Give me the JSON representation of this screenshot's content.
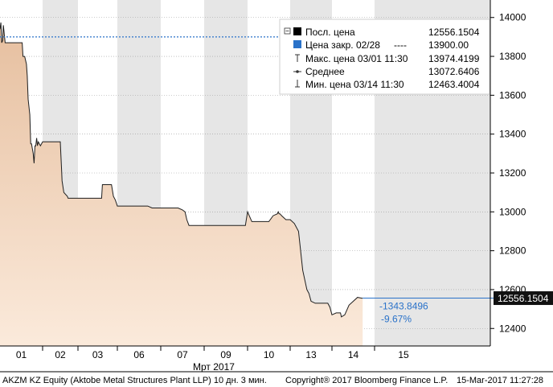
{
  "chart_data": {
    "type": "area",
    "ticker": "AKZM KZ Equity (Aktobe Metal Structures Plant LLP) 10 дн. 3 мин.",
    "copyright": "Copyright® 2017 Bloomberg Finance L.P.",
    "timestamp": "15-Mar-2017 11:27:28",
    "x_labels": [
      "01",
      "02",
      "03",
      "06",
      "07",
      "09",
      "10",
      "13",
      "14",
      "15"
    ],
    "x_sublabel": "Мрт 2017",
    "y_ticks": [
      12400,
      12600,
      12800,
      13000,
      13200,
      13400,
      13600,
      13800,
      14000
    ],
    "y_tick_labels": [
      "12400",
      "12600",
      "12800",
      "13000",
      "13200",
      "13400",
      "13600",
      "13800",
      "14000"
    ],
    "ylim": [
      12310,
      14090
    ],
    "grid": true,
    "legend_position": "top-right",
    "legend": [
      {
        "key": "last",
        "label": "Посл. цена",
        "value": "12556.1504"
      },
      {
        "key": "close",
        "label": "Цена закр. 02/28",
        "dash": "----",
        "value": "13900.00"
      },
      {
        "key": "high",
        "label": "Макс. цена 03/01 11:30",
        "value": "13974.4199"
      },
      {
        "key": "avg",
        "label": "Среднее",
        "value": "13072.6406"
      },
      {
        "key": "low",
        "label": "Мин. цена 03/14 11:30",
        "value": "12463.4004"
      }
    ],
    "reference_close": 13900,
    "last_price_label": "12556.1504",
    "change_abs": "-1343.8496",
    "change_pct": "-9.67%",
    "colors": {
      "area_fill": "#f5ddc5",
      "area_fill_top": "#e9c2a2",
      "area_line": "#1e1e1e",
      "close_line": "#2a72c9",
      "last_line": "#2a72c9",
      "change_text": "#2a72c9",
      "band_grey": "#e6e6e6",
      "band_white": "#ffffff"
    },
    "series_x": [
      0,
      0.02,
      0.04,
      0.06,
      0.08,
      0.12,
      0.16,
      0.2,
      0.4,
      0.5,
      0.52,
      0.54,
      0.56,
      0.58,
      0.62,
      0.64,
      0.66,
      0.7,
      0.72,
      0.74,
      0.78,
      0.8,
      0.82,
      0.84,
      0.86,
      0.88,
      0.9,
      0.95,
      1.0,
      1.02,
      1.04,
      1.06,
      1.08,
      1.1,
      1.14,
      1.16,
      1.18,
      1.2,
      1.25,
      1.3,
      1.4,
      1.5,
      1.54,
      1.55,
      1.6,
      1.7,
      1.72,
      1.74,
      1.8,
      1.86,
      1.9,
      1.92,
      1.94,
      1.96,
      2.0,
      2.1,
      2.2,
      2.3,
      2.4,
      2.5,
      2.6,
      2.62,
      2.65,
      2.68,
      2.7,
      2.72,
      2.75,
      2.8,
      2.85,
      2.9,
      2.95,
      3.0,
      3.1,
      3.2,
      3.3,
      3.4,
      3.5,
      3.6,
      3.7,
      3.8,
      3.9,
      3.95,
      4.0,
      4.05,
      4.1,
      4.12,
      4.2,
      4.3,
      4.4,
      4.5,
      4.56,
      4.6,
      4.65,
      4.7,
      4.8,
      5.0,
      5.1,
      5.2,
      5.3,
      5.4,
      5.5,
      5.6,
      5.7,
      5.8,
      5.9,
      5.95,
      6.0,
      6.1,
      6.2,
      6.3,
      6.4,
      6.45,
      6.5,
      6.6,
      6.7,
      6.72,
      6.74,
      6.76,
      6.8,
      6.9,
      7.0,
      7.1,
      7.2,
      7.3,
      7.4,
      7.45,
      7.5,
      7.6,
      7.7,
      7.8,
      7.9,
      7.95,
      8.0,
      8.1,
      8.2,
      8.22,
      8.3,
      8.4,
      8.6,
      8.7,
      8.72
    ],
    "series_y": [
      13940,
      13974,
      13870,
      13880,
      13960,
      13870,
      13870,
      13870,
      13870,
      13870,
      13870,
      13800,
      13800,
      13800,
      13760,
      13700,
      13580,
      13500,
      13350,
      13350,
      13300,
      13250,
      13340,
      13340,
      13380,
      13340,
      13360,
      13340,
      13360,
      13360,
      13360,
      13360,
      13360,
      13360,
      13360,
      13360,
      13360,
      13360,
      13360,
      13360,
      13360,
      13360,
      13200,
      13160,
      13100,
      13080,
      13070,
      13070,
      13070,
      13070,
      13070,
      13070,
      13070,
      13070,
      13070,
      13070,
      13070,
      13070,
      13070,
      13070,
      13070,
      13140,
      13140,
      13140,
      13140,
      13140,
      13140,
      13140,
      13140,
      13080,
      13060,
      13030,
      13030,
      13030,
      13030,
      13030,
      13030,
      13030,
      13030,
      13020,
      13020,
      13020,
      13020,
      13020,
      13020,
      13020,
      13020,
      13020,
      13020,
      13010,
      13000,
      12960,
      12930,
      12930,
      12930,
      12930,
      12930,
      12930,
      12930,
      12930,
      12930,
      12930,
      12930,
      12930,
      12930,
      12930,
      13000,
      12950,
      12950,
      12950,
      12950,
      12950,
      12950,
      12980,
      12990,
      13000,
      12990,
      12990,
      12980,
      12960,
      12960,
      12940,
      12900,
      12700,
      12600,
      12580,
      12540,
      12530,
      12530,
      12530,
      12530,
      12510,
      12470,
      12480,
      12480,
      12460,
      12470,
      12520,
      12560,
      12556,
      12556
    ]
  }
}
